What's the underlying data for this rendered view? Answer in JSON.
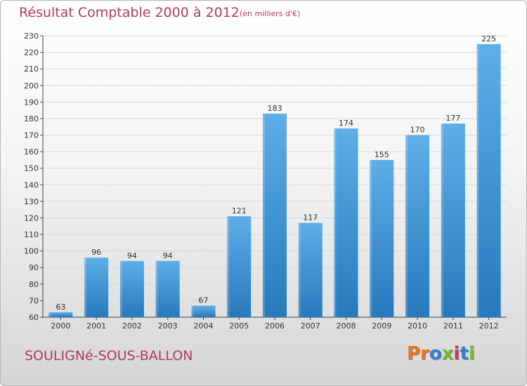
{
  "header": {
    "title": "Résultat Comptable 2000 à 2012",
    "subtitle": "(en milliers d'€)"
  },
  "footer": {
    "commune": "SOULIGNé-SOUS-BALLON",
    "logo_text": "Proxiti",
    "logo_colors": [
      "#e8741c",
      "#e8741c",
      "#2f7fcf",
      "#78b82a",
      "#c43c6a",
      "#2f7fcf",
      "#78b82a"
    ]
  },
  "colors": {
    "bar_light": "#5eaee8",
    "bar_dark": "#2879bd",
    "grid": "#d9d9d9",
    "axis": "#444444",
    "title": "#b03c5c"
  },
  "chart_data": {
    "type": "bar",
    "title": "Résultat Comptable 2000 à 2012",
    "subtitle": "(en milliers d'€)",
    "categories": [
      "2000",
      "2001",
      "2002",
      "2003",
      "2004",
      "2005",
      "2006",
      "2007",
      "2008",
      "2009",
      "2010",
      "2011",
      "2012"
    ],
    "values": [
      63,
      96,
      94,
      94,
      67,
      121,
      183,
      117,
      174,
      155,
      170,
      177,
      225
    ],
    "ylim": [
      60,
      230
    ],
    "yticks": [
      60,
      70,
      80,
      90,
      100,
      110,
      120,
      130,
      140,
      150,
      160,
      170,
      180,
      190,
      200,
      210,
      220,
      230
    ],
    "grid": true,
    "legend": "none"
  }
}
